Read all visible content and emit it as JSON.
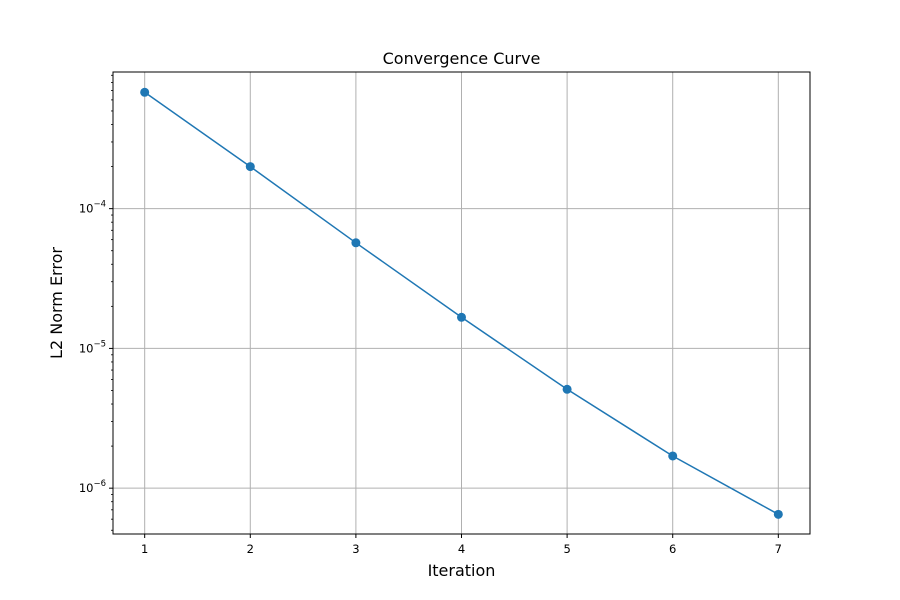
{
  "chart_data": {
    "type": "line",
    "title": "Convergence Curve",
    "xlabel": "Iteration",
    "ylabel": "L2 Norm Error",
    "x": [
      1,
      2,
      3,
      4,
      5,
      6,
      7
    ],
    "series": [
      {
        "values": [
          0.00068,
          0.0002,
          5.7e-05,
          1.67e-05,
          5.1e-06,
          1.7e-06,
          6.5e-07
        ],
        "color": "#1f77b4",
        "marker": "circle"
      }
    ],
    "xlim": [
      0.7,
      7.3
    ],
    "ylim": [
      4.7e-07,
      0.00095
    ],
    "yscale": "log",
    "xticks": [
      1,
      2,
      3,
      4,
      5,
      6,
      7
    ],
    "yticks": [
      {
        "value": 1e-06,
        "base": "10",
        "exponent": "−6"
      },
      {
        "value": 1e-05,
        "base": "10",
        "exponent": "−5"
      },
      {
        "value": 0.0001,
        "base": "10",
        "exponent": "−4"
      }
    ],
    "grid": true,
    "colors": {
      "grid": "#b0b0b0",
      "axes": "#000000",
      "line": "#1f77b4"
    }
  }
}
